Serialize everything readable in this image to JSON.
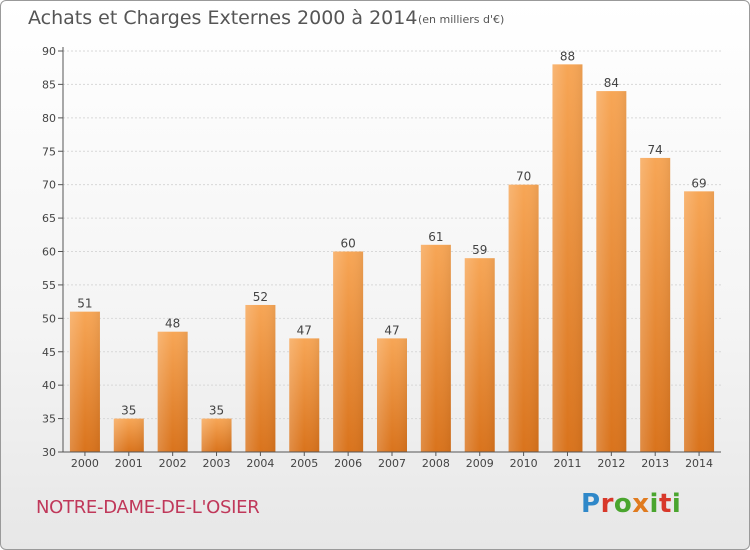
{
  "header": {
    "title": "Achats et Charges Externes 2000 à 2014",
    "subtitle": "(en milliers d'€)"
  },
  "footer": {
    "place": "NOTRE-DAME-DE-L'OSIER",
    "logo": "Proxiti"
  },
  "colors": {
    "bar_top": "#f7a656",
    "bar_bottom": "#d9731c",
    "axis": "#555555",
    "grid": "#d8d8d8",
    "place_text": "#c0385a"
  },
  "chart_data": {
    "type": "bar",
    "categories": [
      "2000",
      "2001",
      "2002",
      "2003",
      "2004",
      "2005",
      "2006",
      "2007",
      "2008",
      "2009",
      "2010",
      "2011",
      "2012",
      "2013",
      "2014"
    ],
    "values": [
      51,
      35,
      48,
      35,
      52,
      47,
      60,
      47,
      61,
      59,
      70,
      88,
      84,
      74,
      69
    ],
    "data_labels": [
      "51",
      "35",
      "48",
      "35",
      "52",
      "47",
      "60",
      "47",
      "61",
      "59",
      "70",
      "88",
      "84",
      "74",
      "69"
    ],
    "y_ticks": [
      30,
      35,
      40,
      45,
      50,
      55,
      60,
      65,
      70,
      75,
      80,
      85,
      90
    ],
    "ylim": [
      30,
      90
    ],
    "grid": true,
    "legend": "none"
  }
}
